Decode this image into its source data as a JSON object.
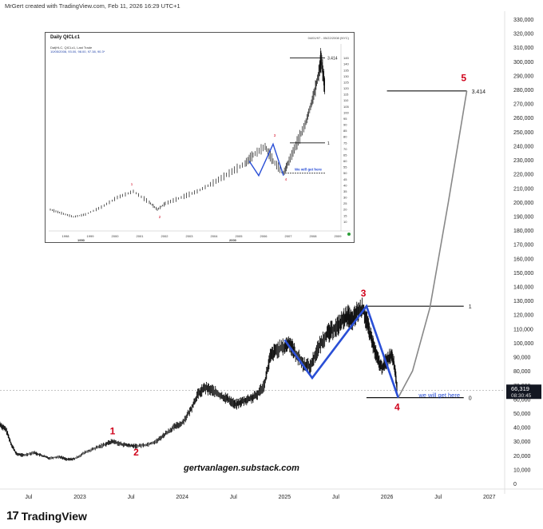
{
  "header": {
    "text": "MrGert created with TradingView.com, Feb 11, 2026 16:29 UTC+1"
  },
  "footer": {
    "logo_text": "TradingView",
    "logo_mark": "17"
  },
  "watermark": "gertvanlagen.substack.com",
  "colors": {
    "price": "#111111",
    "wave": "#2a4fd6",
    "label": "#d0021b",
    "curve": "#888888",
    "note": "#2a4fd6"
  },
  "chart_data": {
    "type": "line",
    "y_axis": {
      "min": 0,
      "max": 330000,
      "ticks": [
        0,
        10000,
        20000,
        30000,
        40000,
        50000,
        60000,
        70000,
        80000,
        90000,
        100000,
        110000,
        120000,
        130000,
        140000,
        150000,
        160000,
        170000,
        180000,
        190000,
        200000,
        210000,
        220000,
        230000,
        240000,
        250000,
        260000,
        270000,
        280000,
        290000,
        300000,
        310000,
        320000,
        330000
      ],
      "tick_labels": [
        "0",
        "10,000",
        "20,000",
        "30,000",
        "40,000",
        "50,000",
        "60,000",
        "70,000",
        "80,000",
        "90,000",
        "100,000",
        "110,000",
        "120,000",
        "130,000",
        "140,000",
        "150,000",
        "160,000",
        "170,000",
        "180,000",
        "190,000",
        "200,000",
        "210,000",
        "220,000",
        "230,000",
        "240,000",
        "250,000",
        "260,000",
        "270,000",
        "280,000",
        "290,000",
        "300,000",
        "310,000",
        "320,000",
        "330,000"
      ]
    },
    "x_axis": {
      "ticks": [
        2022.5,
        2023.0,
        2023.5,
        2024.0,
        2024.5,
        2025.0,
        2025.5,
        2026.0,
        2026.5,
        2027.0
      ],
      "tick_labels": [
        "Jul",
        "2023",
        "Jul",
        "2024",
        "Jul",
        "2025",
        "Jul",
        "2026",
        "Jul",
        "2027"
      ],
      "min": 2022.22,
      "max": 2027.15
    },
    "last_price": {
      "value": 66319,
      "label": "66,319",
      "countdown": "08:30:45"
    },
    "price_series": {
      "name": "",
      "points": [
        [
          2022.22,
          42000
        ],
        [
          2022.28,
          38000
        ],
        [
          2022.33,
          28000
        ],
        [
          2022.38,
          21000
        ],
        [
          2022.45,
          20000
        ],
        [
          2022.55,
          22000
        ],
        [
          2022.62,
          20000
        ],
        [
          2022.7,
          18000
        ],
        [
          2022.8,
          19000
        ],
        [
          2022.88,
          17000
        ],
        [
          2022.95,
          17500
        ],
        [
          2023.05,
          22000
        ],
        [
          2023.15,
          25000
        ],
        [
          2023.25,
          28000
        ],
        [
          2023.32,
          30000
        ],
        [
          2023.4,
          28000
        ],
        [
          2023.48,
          27000
        ],
        [
          2023.55,
          26500
        ],
        [
          2023.65,
          27500
        ],
        [
          2023.75,
          30000
        ],
        [
          2023.83,
          35000
        ],
        [
          2023.92,
          40000
        ],
        [
          2024.0,
          43000
        ],
        [
          2024.08,
          52000
        ],
        [
          2024.15,
          63000
        ],
        [
          2024.22,
          68000
        ],
        [
          2024.3,
          66000
        ],
        [
          2024.38,
          62000
        ],
        [
          2024.45,
          60000
        ],
        [
          2024.52,
          56000
        ],
        [
          2024.58,
          58000
        ],
        [
          2024.65,
          60000
        ],
        [
          2024.72,
          62000
        ],
        [
          2024.8,
          70000
        ],
        [
          2024.86,
          90000
        ],
        [
          2024.92,
          95000
        ],
        [
          2025.0,
          97000
        ],
        [
          2025.05,
          100000
        ],
        [
          2025.1,
          93000
        ],
        [
          2025.18,
          85000
        ],
        [
          2025.25,
          83000
        ],
        [
          2025.32,
          95000
        ],
        [
          2025.4,
          105000
        ],
        [
          2025.45,
          108000
        ],
        [
          2025.52,
          112000
        ],
        [
          2025.58,
          117000
        ],
        [
          2025.62,
          119000
        ],
        [
          2025.66,
          115000
        ],
        [
          2025.71,
          122000
        ],
        [
          2025.77,
          124000
        ],
        [
          2025.82,
          110000
        ],
        [
          2025.86,
          100000
        ],
        [
          2025.9,
          90000
        ],
        [
          2025.95,
          82000
        ],
        [
          2026.0,
          88000
        ],
        [
          2026.05,
          92000
        ],
        [
          2026.08,
          80000
        ],
        [
          2026.1,
          66319
        ]
      ]
    },
    "wave_lines": {
      "name": "",
      "points": [
        [
          2025.0,
          102000
        ],
        [
          2025.27,
          75000
        ],
        [
          2025.8,
          126000
        ],
        [
          2026.11,
          61000
        ]
      ]
    },
    "levels": [
      {
        "label": "0",
        "value": 61000,
        "x_start": 2025.8,
        "x_end": 2026.75
      },
      {
        "label": "1",
        "value": 126000,
        "x_start": 2025.8,
        "x_end": 2026.75
      },
      {
        "label": "3.414",
        "value": 279000,
        "x_start": 2026.0,
        "x_end": 2026.78
      }
    ],
    "projection_curve": {
      "points": [
        [
          2026.11,
          61000
        ],
        [
          2026.25,
          80000
        ],
        [
          2026.42,
          125000
        ],
        [
          2026.6,
          200000
        ],
        [
          2026.78,
          279000
        ]
      ]
    },
    "wave_labels": [
      {
        "text": "1",
        "x": 2023.32,
        "y": 35000
      },
      {
        "text": "2",
        "x": 2023.55,
        "y": 20000
      },
      {
        "text": "3",
        "x": 2025.77,
        "y": 133000
      },
      {
        "text": "4",
        "x": 2026.1,
        "y": 52000
      },
      {
        "text": "5",
        "x": 2026.75,
        "y": 286000
      }
    ],
    "annotation": {
      "text": "we will get here",
      "x": 2026.31,
      "y": 63000
    },
    "inset": {
      "title": "Daily QICLc1",
      "date_range": "04/01/97 - 05/22/2008 (NYC)",
      "legend_lines": [
        "Dat|HLC, QICLc1, Last Trade",
        "10/05/2008, 93.00, 98.00, 97.38, 90.3*"
      ],
      "y_ticks": [
        10,
        15,
        20,
        25,
        30,
        35,
        40,
        45,
        50,
        55,
        60,
        65,
        70,
        75,
        80,
        85,
        90,
        95,
        100,
        105,
        110,
        115,
        120,
        125,
        130,
        135,
        140,
        145
      ],
      "x_tick_labels": [
        "1998",
        "1999",
        "2000",
        "2001",
        "2002",
        "2003",
        "2004",
        "2005",
        "2006",
        "2007",
        "2008",
        "2009"
      ],
      "x_sub_labels": [
        "1990",
        "2000"
      ],
      "level_labels": [
        "3.414",
        "1"
      ],
      "wave_labels": [
        "1",
        "2",
        "3",
        "4"
      ],
      "note": "We will get here"
    }
  }
}
